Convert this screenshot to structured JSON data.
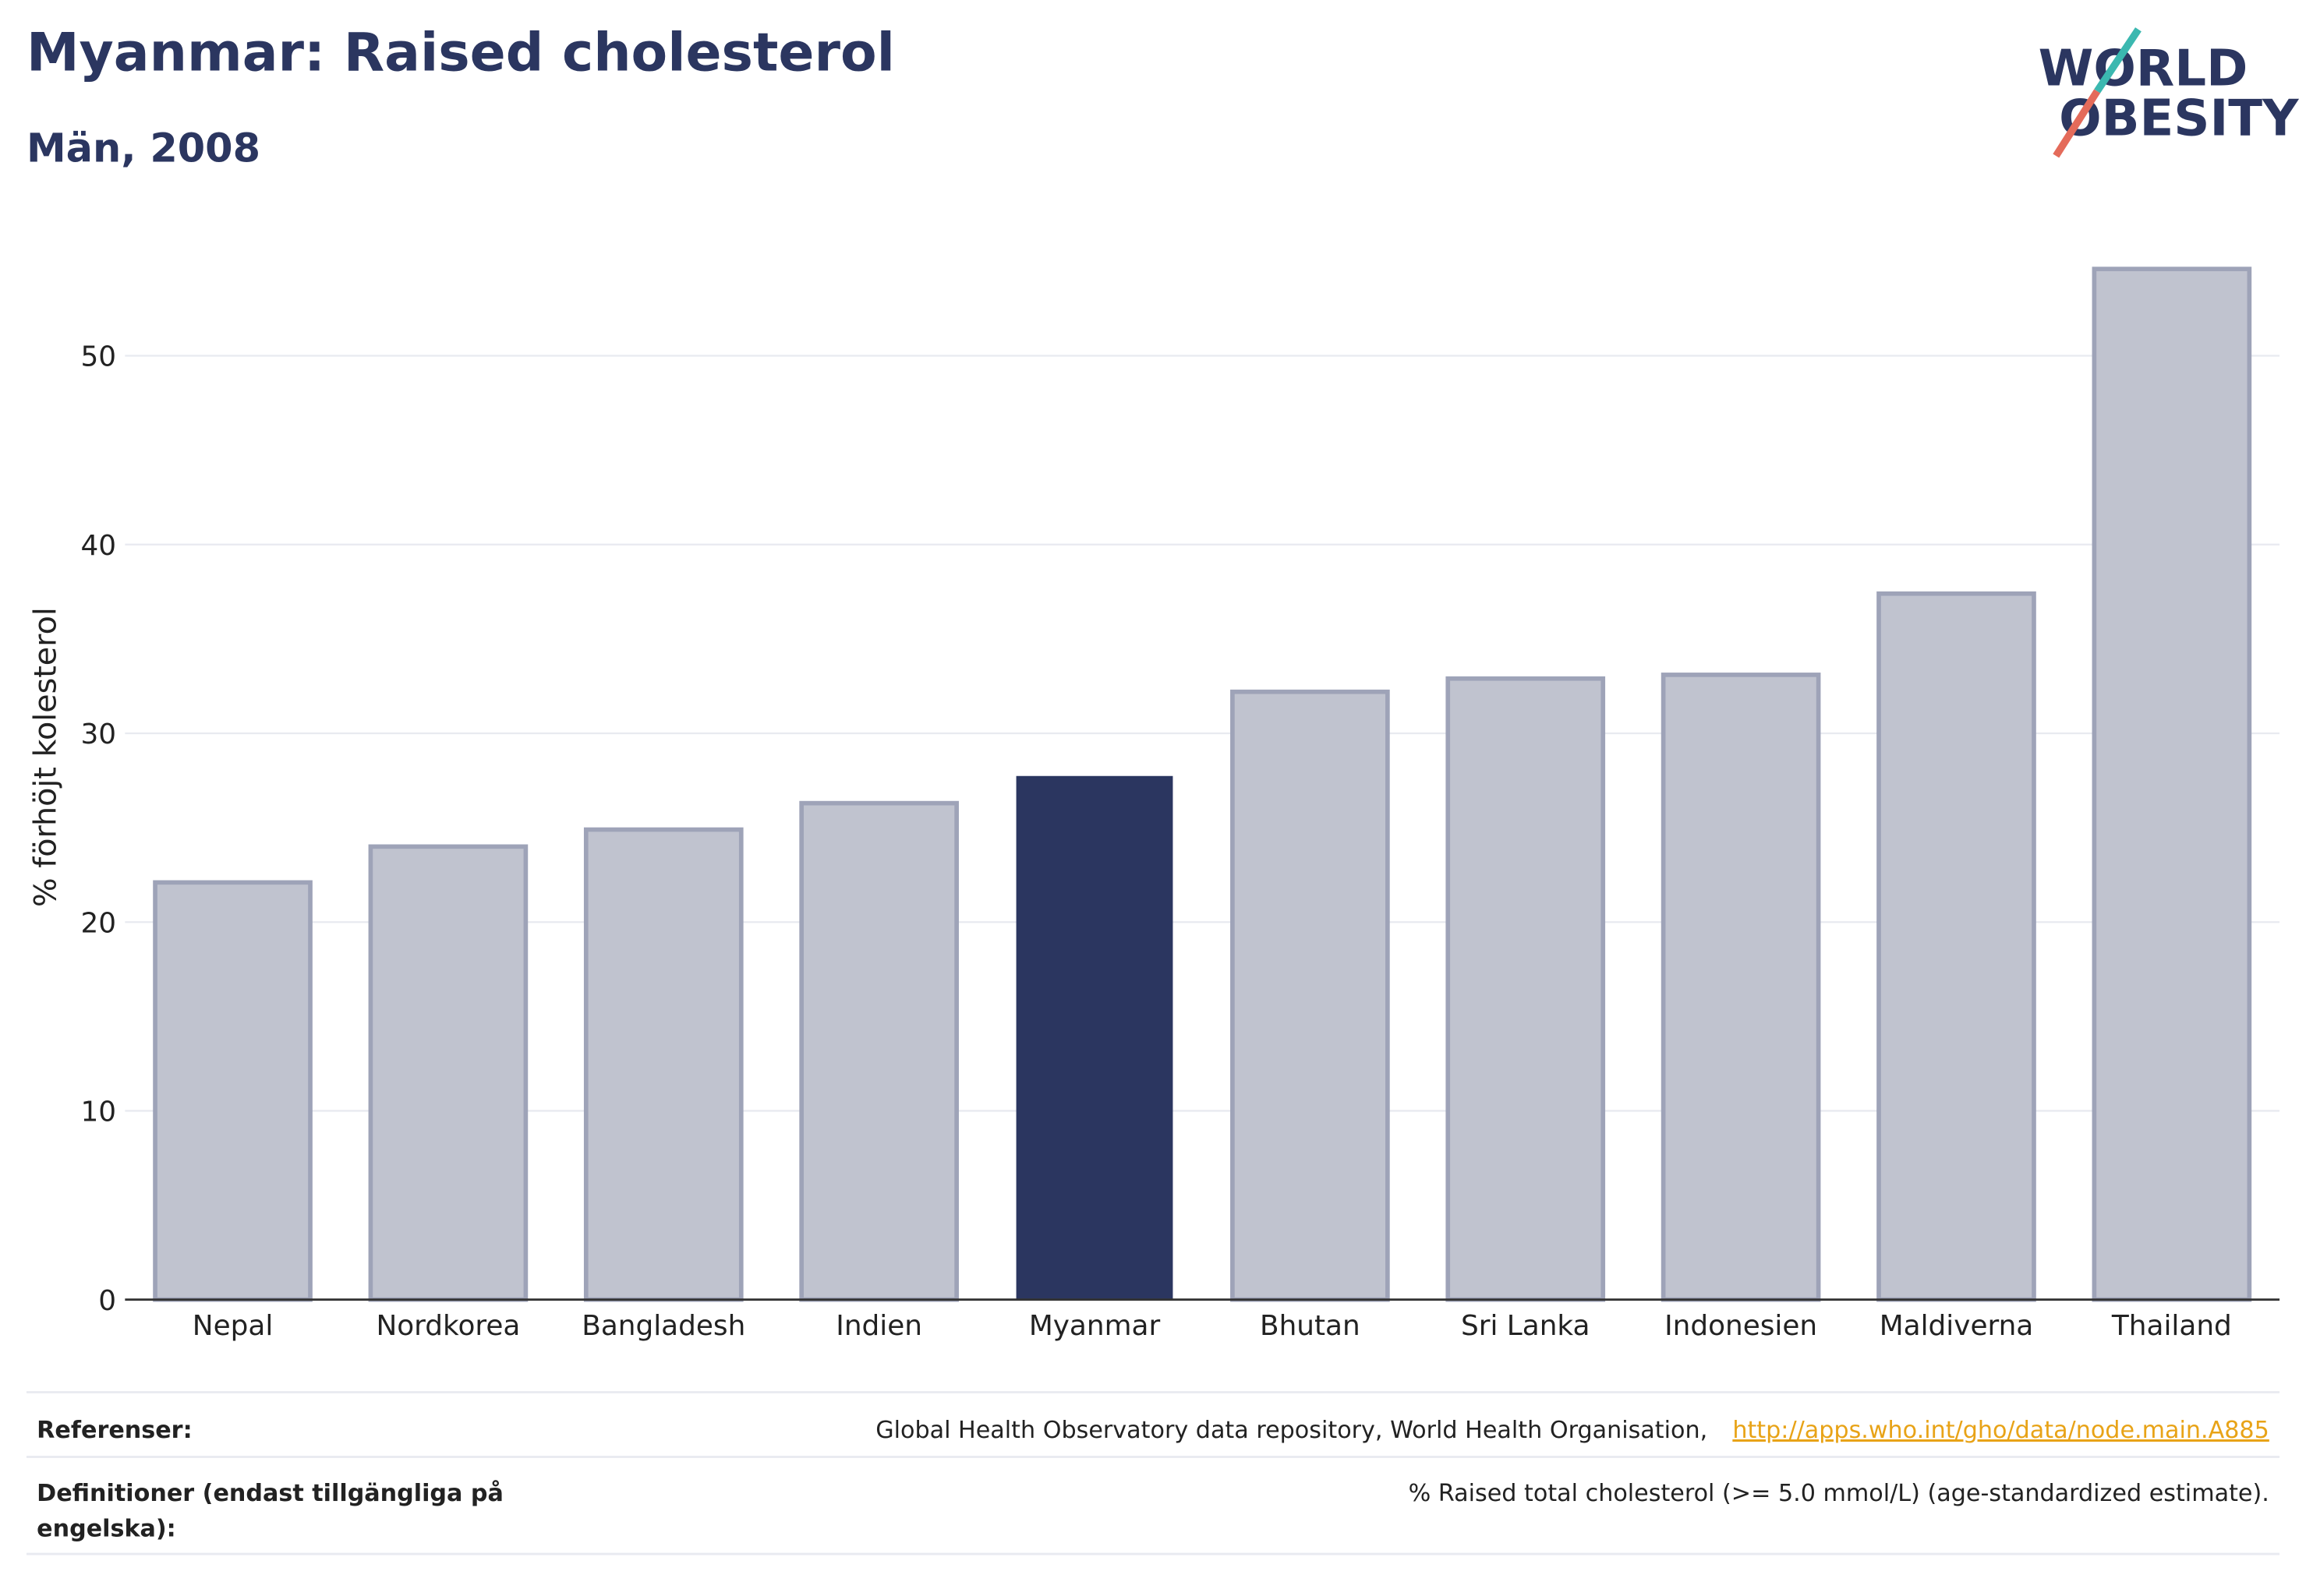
{
  "chart_data": {
    "type": "bar",
    "title": "Myanmar: Raised cholesterol",
    "subtitle": "Män, 2008",
    "ylabel": "% förhöjt kolesterol",
    "categories": [
      "Nepal",
      "Nordkorea",
      "Bangladesh",
      "Indien",
      "Myanmar",
      "Bhutan",
      "Sri Lanka",
      "Indonesien",
      "Maldiverna",
      "Thailand"
    ],
    "values": [
      22.1,
      24.0,
      24.9,
      26.3,
      27.7,
      32.2,
      32.9,
      33.1,
      37.4,
      54.6
    ],
    "colors": [
      "#c0c3cf",
      "#c0c3cf",
      "#c0c3cf",
      "#c0c3cf",
      "#2b3660",
      "#c0c3cf",
      "#c0c3cf",
      "#c0c3cf",
      "#c0c3cf",
      "#c0c3cf"
    ],
    "ylim": [
      0,
      55.5
    ],
    "yticks": [
      0,
      10,
      20,
      30,
      40,
      50
    ],
    "grid": true
  },
  "logo": {
    "line1": "WORLD",
    "line2": "OBESITY"
  },
  "footer": {
    "references_label": "Referenser:",
    "references_text": "Global Health Observatory data repository, World Health Organisation,",
    "references_link": "http://apps.who.int/gho/data/node.main.A885",
    "definitions_label_1": "Definitioner (endast tillgängliga på",
    "definitions_label_2": "engelska):",
    "definitions_text": "% Raised total cholesterol (>= 5.0 mmol/L) (age-standardized estimate)."
  }
}
